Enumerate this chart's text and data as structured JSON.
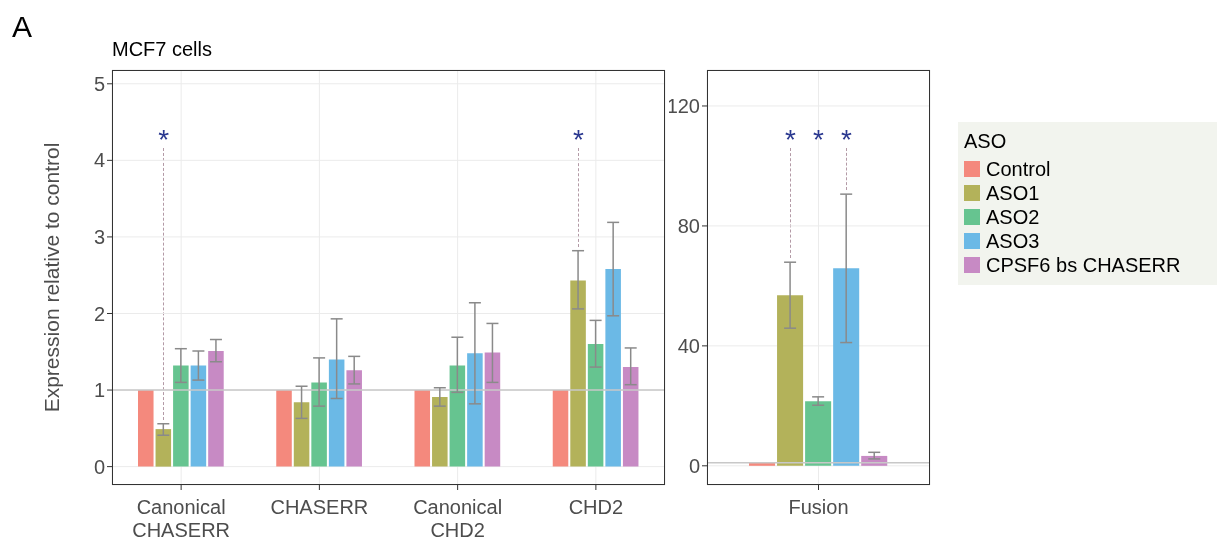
{
  "chart_data": [
    {
      "type": "bar",
      "title": "MCF7 cells",
      "ylabel": "Expression relative to control",
      "categories": [
        "Canonical CHASERR",
        "CHASERR",
        "Canonical CHD2",
        "CHD2"
      ],
      "series": [
        {
          "color": "#f4897d",
          "values": [
            1,
            1,
            1,
            1
          ],
          "errors": [
            null,
            null,
            null,
            null
          ]
        },
        {
          "color": "#b3b25a",
          "values": [
            0.49,
            0.84,
            0.91,
            2.43
          ],
          "errors": [
            [
              0.41,
              0.56
            ],
            [
              0.63,
              1.05
            ],
            [
              0.79,
              1.03
            ],
            [
              2.06,
              2.82
            ]
          ]
        },
        {
          "color": "#66c490",
          "values": [
            1.32,
            1.1,
            1.32,
            1.6
          ],
          "errors": [
            [
              1.1,
              1.54
            ],
            [
              0.79,
              1.42
            ],
            [
              0.97,
              1.69
            ],
            [
              1.3,
              1.91
            ]
          ]
        },
        {
          "color": "#6bb9e6",
          "values": [
            1.32,
            1.4,
            1.48,
            2.58
          ],
          "errors": [
            [
              1.13,
              1.51
            ],
            [
              0.89,
              1.93
            ],
            [
              0.82,
              2.14
            ],
            [
              1.97,
              3.19
            ]
          ]
        },
        {
          "color": "#c78ac4",
          "values": [
            1.51,
            1.26,
            1.49,
            1.3
          ],
          "errors": [
            [
              1.37,
              1.66
            ],
            [
              1.08,
              1.44
            ],
            [
              1.1,
              1.87
            ],
            [
              1.07,
              1.55
            ]
          ]
        }
      ],
      "ylim": [
        -0.24,
        5.18
      ],
      "yticks": [
        0,
        1,
        2,
        3,
        4,
        5
      ],
      "grid": true,
      "legend": false,
      "ref_lines": [
        {
          "axis": "y",
          "value": 1,
          "color": "#c8c8c8"
        }
      ],
      "annotations": [
        "A",
        "*",
        "*"
      ]
    },
    {
      "type": "bar",
      "categories": [
        "Fusion"
      ],
      "series": [
        {
          "name": "Control",
          "color": "#f4897d",
          "values": [
            1
          ],
          "errors": [
            null
          ]
        },
        {
          "name": "ASO1",
          "color": "#b3b25a",
          "values": [
            56.9
          ],
          "errors": [
            [
              45.9,
              67.9
            ]
          ]
        },
        {
          "name": "ASO2",
          "color": "#66c490",
          "values": [
            21.5
          ],
          "errors": [
            [
              20.2,
              23
            ]
          ]
        },
        {
          "name": "ASO3",
          "color": "#6bb9e6",
          "values": [
            65.9
          ],
          "errors": [
            [
              41.1,
              90.6
            ]
          ]
        },
        {
          "name": "CPSF6 bs CHASERR",
          "color": "#c78ac4",
          "values": [
            3.3
          ],
          "errors": [
            [
              2.3,
              4.5
            ]
          ]
        }
      ],
      "ylim": [
        -6.4,
        132
      ],
      "yticks": [
        0,
        40,
        80,
        120
      ],
      "grid": true,
      "legend": "right",
      "legend_title": "ASO",
      "ref_lines": [
        {
          "axis": "y",
          "value": 1,
          "color": "#c8c8c8"
        }
      ],
      "annotations": [
        "*",
        "*",
        "*"
      ]
    }
  ]
}
